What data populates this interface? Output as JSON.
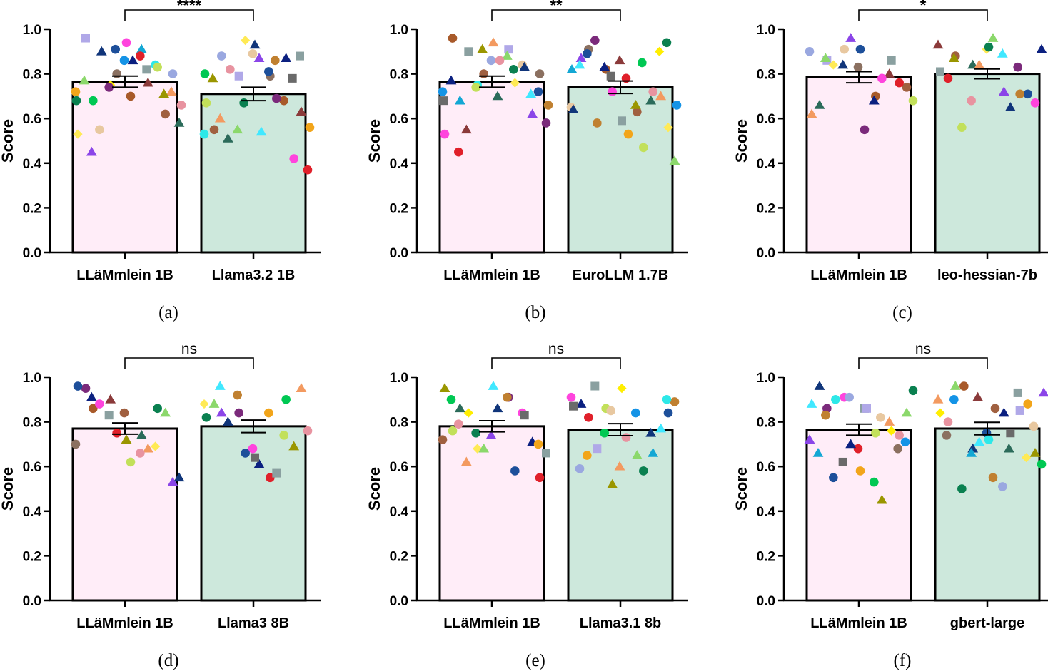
{
  "chart_data": [
    {
      "type": "bar",
      "caption": "(a)",
      "ylabel": "Score",
      "ylim": [
        0,
        1.0
      ],
      "yticks": [
        "0.0",
        "0.2",
        "0.4",
        "0.6",
        "0.8",
        "1.0"
      ],
      "categories": [
        "LLäMmlein 1B",
        "Llama3.2 1B"
      ],
      "values": [
        0.765,
        0.71
      ],
      "sem": [
        0.025,
        0.03
      ],
      "significance": "****",
      "points": [
        [
          0.72,
          0.68,
          0.75,
          0.86,
          0.91,
          0.84,
          0.8,
          0.96,
          0.55,
          0.8,
          0.7,
          0.76,
          0.62,
          0.58,
          0.53,
          0.45,
          0.74,
          0.94,
          0.88,
          0.83,
          0.72,
          0.77,
          0.9,
          0.91,
          0.86,
          0.82,
          0.71,
          0.66,
          0.68
        ],
        [
          0.53,
          0.88,
          0.79,
          0.89,
          0.79,
          0.68,
          0.63,
          0.55,
          0.51,
          0.95,
          0.87,
          0.69,
          0.42,
          0.37,
          0.67,
          0.6,
          0.55,
          0.93,
          0.81,
          0.87,
          0.88,
          0.78,
          0.82,
          0.67,
          0.54,
          0.86,
          0.78,
          0.56,
          0.8
        ]
      ]
    },
    {
      "type": "bar",
      "caption": "(b)",
      "ylabel": "Score",
      "ylim": [
        0,
        1.0
      ],
      "yticks": [
        "0.0",
        "0.2",
        "0.4",
        "0.6",
        "0.8",
        "1.0"
      ],
      "categories": [
        "LLäMmlein 1B",
        "EuroLLM 1.7B"
      ],
      "values": [
        0.765,
        0.74
      ],
      "sem": [
        0.025,
        0.028
      ],
      "significance": "**",
      "points": [
        [
          0.72,
          0.68,
          0.75,
          0.86,
          0.91,
          0.84,
          0.8,
          0.96,
          0.55,
          0.8,
          0.7,
          0.76,
          0.62,
          0.58,
          0.53,
          0.45,
          0.74,
          0.94,
          0.88,
          0.83,
          0.72,
          0.77,
          0.9,
          0.91,
          0.86,
          0.82,
          0.71,
          0.66,
          0.68
        ],
        [
          0.65,
          0.91,
          0.82,
          0.86,
          0.63,
          0.68,
          0.56,
          0.87,
          0.95,
          0.72,
          0.78,
          0.47,
          0.7,
          0.41,
          0.64,
          0.89,
          0.83,
          0.59,
          0.66,
          0.72,
          0.94,
          0.84,
          0.58,
          0.79,
          0.53,
          0.85,
          0.9,
          0.66,
          0.82
        ]
      ]
    },
    {
      "type": "bar",
      "caption": "(c)",
      "ylabel": "Score",
      "ylim": [
        0,
        1.0
      ],
      "yticks": [
        "0.0",
        "0.2",
        "0.4",
        "0.6",
        "0.8",
        "1.0"
      ],
      "categories": [
        "LLäMmlein 1B",
        "leo-hessian-7b"
      ],
      "values": [
        0.785,
        0.8
      ],
      "sem": [
        0.025,
        0.022
      ],
      "significance": "*",
      "points": [
        [
          0.9,
          0.86,
          0.91,
          0.83,
          0.7,
          0.8,
          0.74,
          0.66,
          0.84,
          0.96,
          0.55,
          0.78,
          0.76,
          0.68,
          0.62,
          0.87,
          0.84,
          0.91,
          0.68,
          0.86
        ],
        [
          0.93,
          0.88,
          0.84,
          0.91,
          0.72,
          0.83,
          0.67,
          0.78,
          0.56,
          0.84,
          0.96,
          0.65,
          0.71,
          0.91,
          0.81,
          0.87,
          0.68,
          0.92,
          0.89,
          0.71
        ]
      ]
    },
    {
      "type": "bar",
      "caption": "(d)",
      "ylabel": "Score",
      "ylim": [
        0,
        1.0
      ],
      "yticks": [
        "0.0",
        "0.2",
        "0.4",
        "0.6",
        "0.8",
        "1.0"
      ],
      "categories": [
        "LLäMmlein 1B",
        "Llama3 8B"
      ],
      "values": [
        0.77,
        0.78
      ],
      "sem": [
        0.025,
        0.028
      ],
      "significance": "ns",
      "points": [
        [
          0.7,
          0.86,
          0.9,
          0.84,
          0.74,
          0.69,
          0.53,
          0.95,
          0.88,
          0.75,
          0.62,
          0.68,
          0.84,
          0.55,
          0.96,
          0.91,
          0.83,
          0.72,
          0.66,
          0.86
        ],
        [
          0.88,
          0.84,
          0.84,
          0.68,
          0.55,
          0.74,
          0.95,
          0.88,
          0.8,
          0.66,
          0.61,
          0.57,
          0.69,
          0.76,
          0.82,
          0.96,
          0.92,
          0.64,
          0.84,
          0.9
        ]
      ]
    },
    {
      "type": "bar",
      "caption": "(e)",
      "ylabel": "Score",
      "ylim": [
        0,
        1.0
      ],
      "yticks": [
        "0.0",
        "0.2",
        "0.4",
        "0.6",
        "0.8",
        "1.0"
      ],
      "categories": [
        "LLäMmlein 1B",
        "Llama3.1 8b"
      ],
      "values": [
        0.78,
        0.765
      ],
      "sem": [
        0.025,
        0.027
      ],
      "significance": "ns",
      "points": [
        [
          0.72,
          0.86,
          0.68,
          0.74,
          0.91,
          0.84,
          0.55,
          0.76,
          0.62,
          0.68,
          0.86,
          0.58,
          0.71,
          0.66,
          0.95,
          0.79,
          0.75,
          0.96,
          0.91,
          0.83,
          0.7,
          0.9,
          0.84
        ],
        [
          0.91,
          0.82,
          0.86,
          0.6,
          0.65,
          0.75,
          0.84,
          0.88,
          0.96,
          0.52,
          0.73,
          0.58,
          0.77,
          0.89,
          0.87,
          0.65,
          0.75,
          0.95,
          0.84,
          0.66,
          0.9,
          0.59,
          0.68,
          0.85
        ]
      ]
    },
    {
      "type": "bar",
      "caption": "(f)",
      "ylabel": "Score",
      "ylim": [
        0,
        1.0
      ],
      "yticks": [
        "0.0",
        "0.2",
        "0.4",
        "0.6",
        "0.8",
        "1.0"
      ],
      "categories": [
        "LLäMmlein 1B",
        "gbert-large"
      ],
      "values": [
        0.765,
        0.77
      ],
      "sem": [
        0.025,
        0.028
      ],
      "significance": "ns",
      "points": [
        [
          0.72,
          0.86,
          0.91,
          0.68,
          0.75,
          0.8,
          0.84,
          0.96,
          0.55,
          0.7,
          0.86,
          0.45,
          0.74,
          0.94,
          0.88,
          0.83,
          0.62,
          0.58,
          0.53,
          0.76,
          0.71,
          0.66,
          0.9,
          0.91,
          0.86,
          0.82,
          0.68
        ],
        [
          0.9,
          0.96,
          0.68,
          0.75,
          0.84,
          0.93,
          0.66,
          0.8,
          0.5,
          0.71,
          0.55,
          0.75,
          0.88,
          0.61,
          0.84,
          0.9,
          0.66,
          0.72,
          0.51,
          0.85,
          0.78,
          0.74,
          0.96,
          0.91,
          0.86,
          0.68,
          0.64,
          0.93
        ]
      ]
    }
  ]
}
